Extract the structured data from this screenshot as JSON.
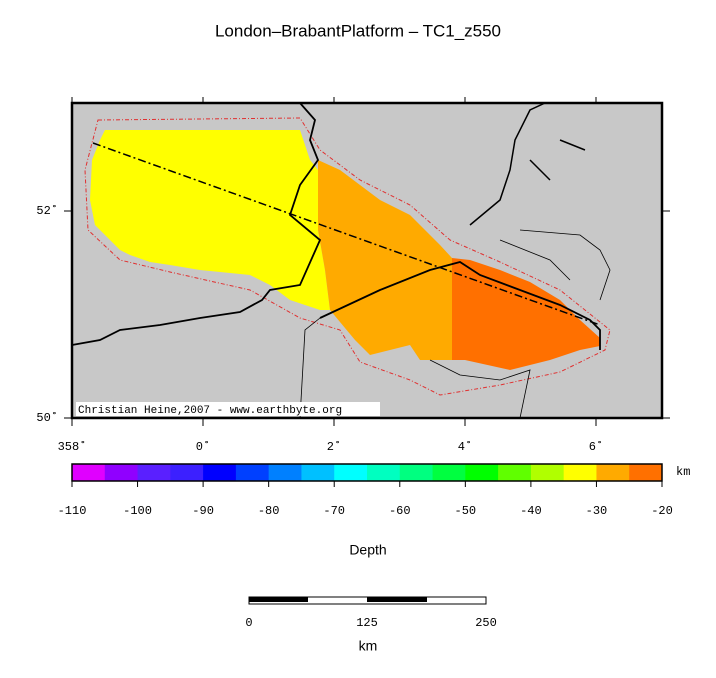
{
  "header": {
    "title": "London–BrabantPlatform – TC1_z550"
  },
  "map": {
    "lon_labels": [
      "358˚",
      "0˚",
      "2˚",
      "4˚",
      "6˚"
    ],
    "lat_labels": [
      "50˚",
      "52˚"
    ],
    "credit": "Christian Heine,2007 - www.earthbyte.org"
  },
  "colorbar": {
    "colors": [
      "#e000ff",
      "#9000ff",
      "#5a20ff",
      "#3c20ff",
      "#0000ff",
      "#0040ff",
      "#0080ff",
      "#00c0ff",
      "#00ffff",
      "#00ffc0",
      "#00ff80",
      "#00ff40",
      "#00ff00",
      "#60ff00",
      "#b0ff00",
      "#ffff00",
      "#ffaa00",
      "#ff7000"
    ],
    "ticks": [
      -110,
      -100,
      -90,
      -80,
      -70,
      -60,
      -50,
      -40,
      -30,
      -20
    ],
    "unit": "km",
    "label": "Depth"
  },
  "scale": {
    "ticks": [
      0,
      125,
      250
    ],
    "unit": "km"
  }
}
